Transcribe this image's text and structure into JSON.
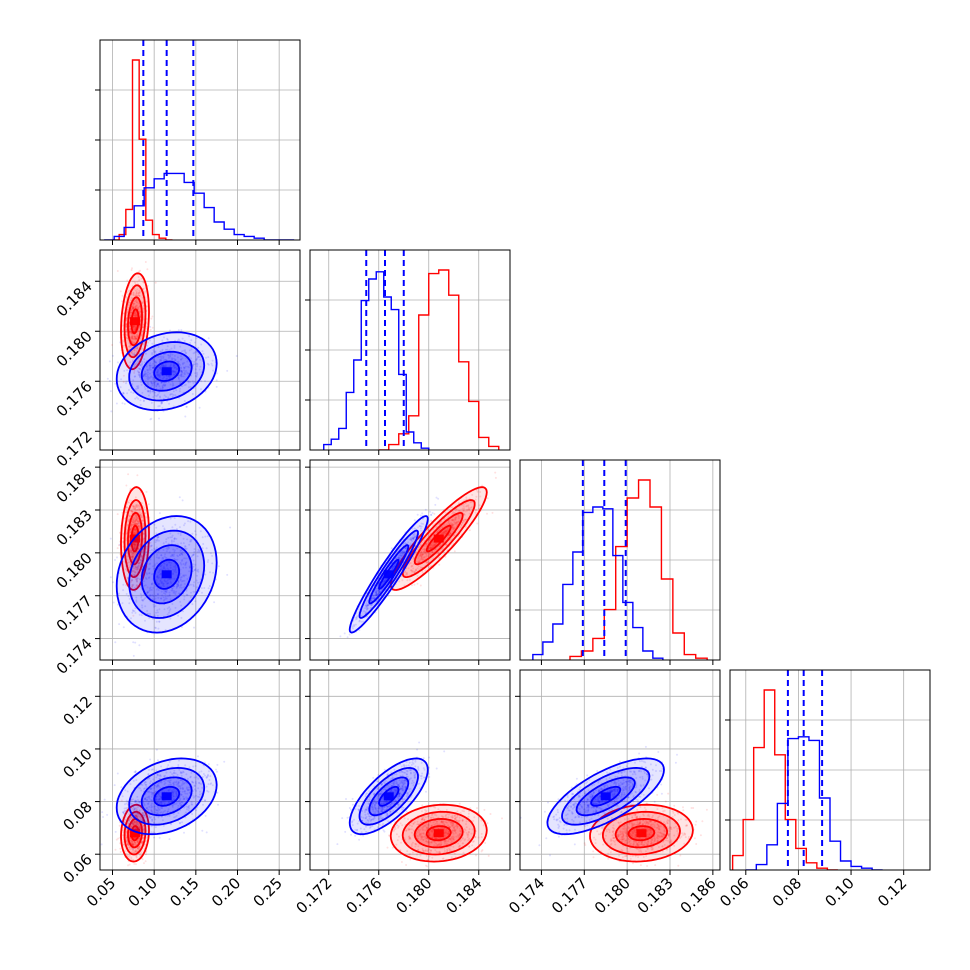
{
  "colors": {
    "red": "#ff0000",
    "blue": "#0000ff",
    "grid": "#b0b0b0",
    "axis": "#000000"
  },
  "chart_data": {
    "type": "corner",
    "grid": true,
    "parameters": [
      {
        "range": [
          0.035,
          0.275
        ],
        "ticks": [
          0.05,
          0.1,
          0.15,
          0.2,
          0.25
        ],
        "tick_labels": [
          "0.05",
          "0.10",
          "0.15",
          "0.20",
          "0.25"
        ]
      },
      {
        "range": [
          0.1705,
          0.1865
        ],
        "ticks": [
          0.172,
          0.176,
          0.18,
          0.184
        ],
        "tick_labels": [
          "0.172",
          "0.176",
          "0.180",
          "0.184"
        ]
      },
      {
        "range": [
          0.1725,
          0.1865
        ],
        "ticks": [
          0.174,
          0.177,
          0.18,
          0.183,
          0.186
        ],
        "tick_labels": [
          "0.174",
          "0.177",
          "0.180",
          "0.183",
          "0.186"
        ]
      },
      {
        "range": [
          0.054,
          0.13
        ],
        "ticks": [
          0.06,
          0.08,
          0.1,
          0.12
        ],
        "tick_labels": [
          "0.06",
          "0.08",
          "0.10",
          "0.12"
        ]
      }
    ],
    "series": [
      {
        "color": "red",
        "means": [
          0.077,
          0.1808,
          0.181,
          0.068
        ],
        "sds": [
          0.007,
          0.0016,
          0.0015,
          0.0045
        ],
        "corr": [
          [
            1,
            0.2,
            0.1,
            0.1
          ],
          [
            0.2,
            1,
            0.9,
            0.1
          ],
          [
            0.1,
            0.9,
            1,
            0.1
          ],
          [
            0.1,
            0.1,
            0.1,
            1
          ]
        ],
        "hist": [
          {
            "bins": [
              0.05,
              0.058,
              0.066,
              0.074,
              0.082,
              0.09,
              0.098,
              0.106,
              0.114,
              0.122
            ],
            "counts": [
              0.0,
              0.03,
              0.17,
              1.0,
              0.56,
              0.11,
              0.03,
              0.01,
              0.0
            ]
          },
          {
            "bins": [
              0.176,
              0.1768,
              0.1776,
              0.1784,
              0.1792,
              0.18,
              0.1808,
              0.1816,
              0.1824,
              0.1832,
              0.184,
              0.1848,
              0.1856
            ],
            "counts": [
              0.0,
              0.03,
              0.09,
              0.19,
              0.75,
              0.98,
              1.0,
              0.86,
              0.49,
              0.27,
              0.07,
              0.02
            ]
          },
          {
            "bins": [
              0.176,
              0.1768,
              0.1776,
              0.1784,
              0.1792,
              0.18,
              0.1808,
              0.1816,
              0.1824,
              0.1832,
              0.184,
              0.1848,
              0.1856
            ],
            "counts": [
              0.02,
              0.05,
              0.12,
              0.28,
              0.63,
              0.9,
              1.0,
              0.85,
              0.45,
              0.15,
              0.03,
              0.01
            ]
          },
          {
            "bins": [
              0.055,
              0.059,
              0.063,
              0.067,
              0.071,
              0.075,
              0.079,
              0.083,
              0.087,
              0.091,
              0.095
            ],
            "counts": [
              0.08,
              0.28,
              0.68,
              1.0,
              0.64,
              0.28,
              0.12,
              0.04,
              0.01,
              0.0
            ]
          }
        ]
      },
      {
        "color": "blue",
        "means": [
          0.115,
          0.1768,
          0.1785,
          0.082
        ],
        "sds": [
          0.025,
          0.0013,
          0.0017,
          0.006
        ],
        "corr": [
          [
            1,
            0.2,
            0.2,
            0.3
          ],
          [
            0.2,
            1,
            0.95,
            0.7
          ],
          [
            0.2,
            0.95,
            1,
            0.7
          ],
          [
            0.3,
            0.7,
            0.7,
            1
          ]
        ],
        "quantiles": [
          [
            0.087,
            0.115,
            0.147
          ],
          [
            0.175,
            0.1765,
            0.178
          ],
          [
            0.1769,
            0.1784,
            0.1799
          ],
          [
            0.076,
            0.082,
            0.089
          ]
        ],
        "hist": [
          {
            "bins": [
              0.04,
              0.052,
              0.064,
              0.076,
              0.088,
              0.1,
              0.112,
              0.124,
              0.136,
              0.148,
              0.16,
              0.172,
              0.184,
              0.196,
              0.208,
              0.22,
              0.232,
              0.244,
              0.256,
              0.268
            ],
            "counts": [
              0.0,
              0.02,
              0.07,
              0.19,
              0.29,
              0.34,
              0.37,
              0.37,
              0.32,
              0.26,
              0.18,
              0.1,
              0.06,
              0.03,
              0.02,
              0.01,
              0.0,
              0.0,
              0.0
            ]
          },
          {
            "bins": [
              0.1716,
              0.1722,
              0.1728,
              0.1734,
              0.174,
              0.1746,
              0.1752,
              0.1758,
              0.1764,
              0.177,
              0.1776,
              0.1782,
              0.1788,
              0.1794,
              0.18
            ],
            "counts": [
              0.03,
              0.06,
              0.12,
              0.32,
              0.5,
              0.83,
              0.95,
              0.99,
              0.85,
              0.78,
              0.42,
              0.1,
              0.04,
              0.01
            ]
          },
          {
            "bins": [
              0.1734,
              0.1741,
              0.1748,
              0.1755,
              0.1762,
              0.1769,
              0.1776,
              0.1783,
              0.179,
              0.1797,
              0.1804,
              0.1811,
              0.1818,
              0.1825
            ],
            "counts": [
              0.03,
              0.1,
              0.2,
              0.42,
              0.6,
              0.82,
              0.85,
              0.84,
              0.58,
              0.32,
              0.18,
              0.05,
              0.01
            ]
          },
          {
            "bins": [
              0.06,
              0.064,
              0.068,
              0.072,
              0.076,
              0.08,
              0.084,
              0.088,
              0.092,
              0.096,
              0.1,
              0.104,
              0.108,
              0.112
            ],
            "counts": [
              0.0,
              0.03,
              0.14,
              0.37,
              0.73,
              0.74,
              0.72,
              0.4,
              0.16,
              0.05,
              0.02,
              0.01,
              0.0
            ]
          }
        ]
      }
    ]
  }
}
